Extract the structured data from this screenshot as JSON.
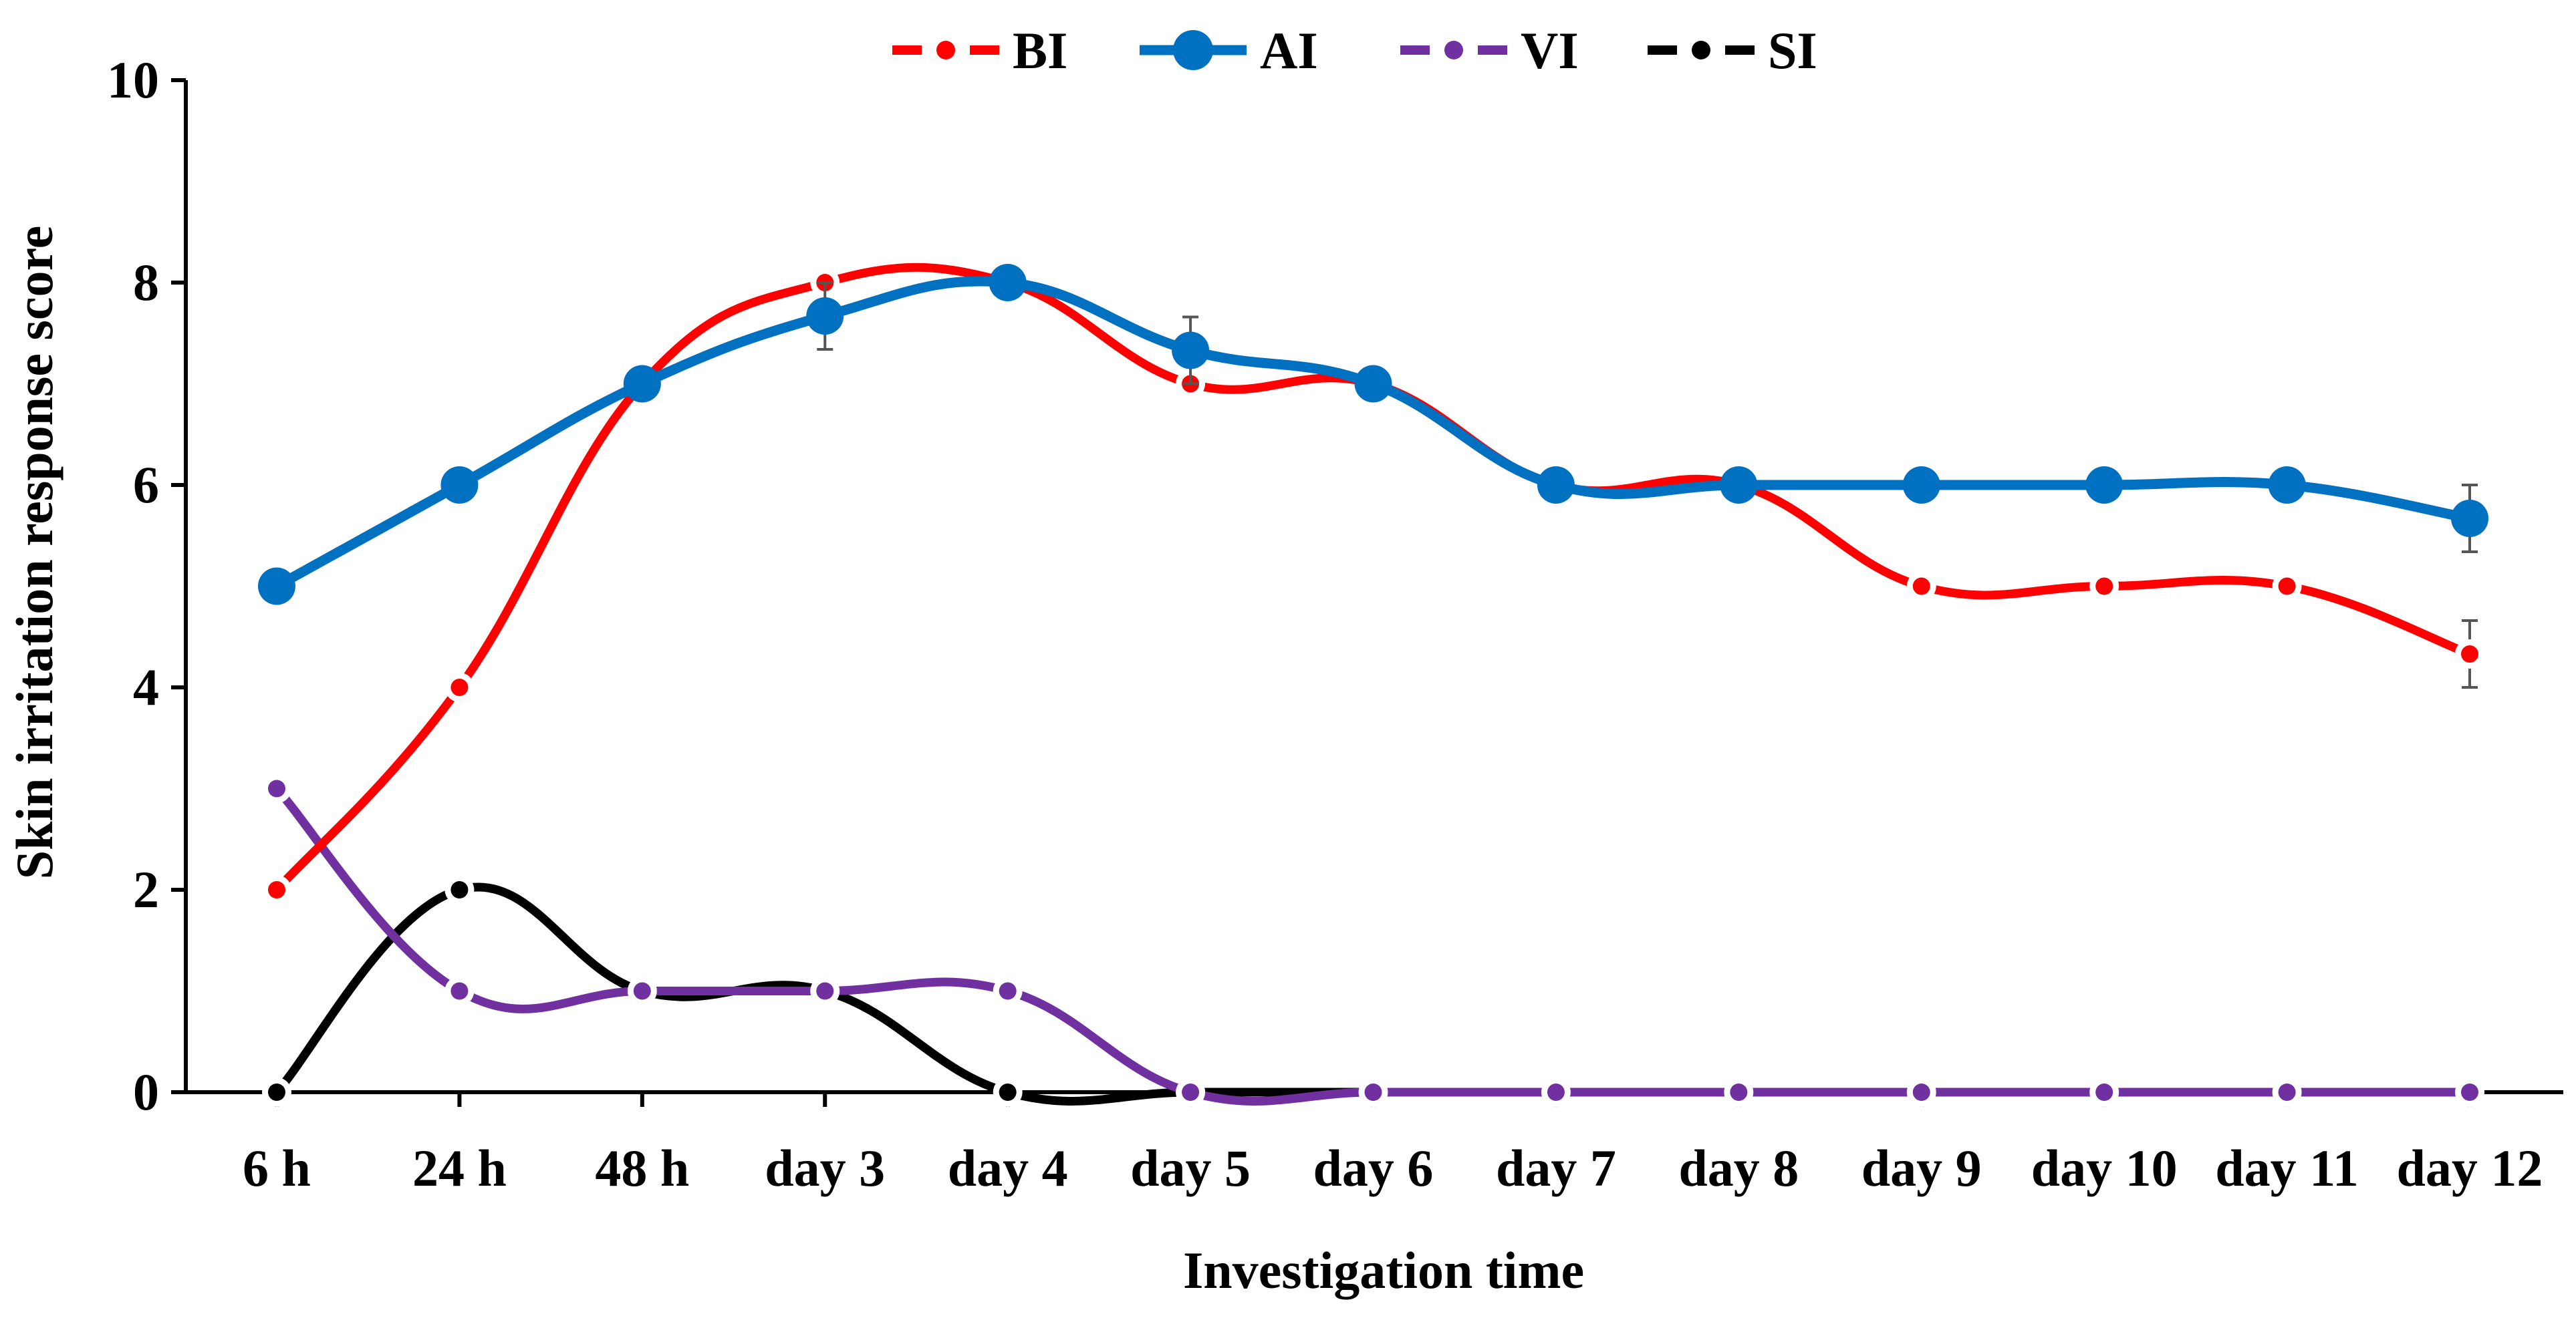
{
  "chart_data": {
    "type": "line",
    "title": "",
    "xlabel": "Investigation time",
    "ylabel": "Skin irritation response score",
    "ylim": [
      0,
      10
    ],
    "yticks": [
      0,
      2,
      4,
      6,
      8,
      10
    ],
    "grid": false,
    "legend_position": "top-center",
    "categories": [
      "6 h",
      "24 h",
      "48 h",
      "day 3",
      "day 4",
      "day 5",
      "day 6",
      "day 7",
      "day 8",
      "day 9",
      "day 10",
      "day 11",
      "day 12"
    ],
    "series": [
      {
        "name": "BI",
        "color": "#ff0000",
        "style": "dashed-small-markers",
        "values": [
          2,
          4,
          7,
          8,
          8,
          7,
          7,
          6,
          6,
          5,
          5,
          5,
          4.33
        ],
        "errors": [
          0,
          0,
          0,
          0,
          0,
          0,
          0,
          0,
          0,
          0,
          0,
          0,
          0.33
        ]
      },
      {
        "name": "AI",
        "color": "#0070c0",
        "style": "solid-large-markers",
        "values": [
          5,
          6,
          7,
          7.67,
          8,
          7.33,
          7,
          6,
          6,
          6,
          6,
          6,
          5.67
        ],
        "errors": [
          0,
          0,
          0,
          0.33,
          0,
          0.33,
          0,
          0,
          0,
          0,
          0,
          0,
          0.33
        ]
      },
      {
        "name": "VI",
        "color": "#7030a0",
        "style": "dashed-small-markers",
        "values": [
          3,
          1,
          1,
          1,
          1,
          0,
          0,
          0,
          0,
          0,
          0,
          0,
          0
        ],
        "errors": [
          0,
          0,
          0,
          0,
          0,
          0,
          0,
          0,
          0,
          0,
          0,
          0,
          0
        ]
      },
      {
        "name": "SI",
        "color": "#000000",
        "style": "dashed-small-markers",
        "values": [
          0,
          2,
          1,
          1,
          0,
          0,
          0,
          0,
          0,
          0,
          0,
          0,
          0
        ],
        "errors": [
          0,
          0,
          0,
          0,
          0,
          0,
          0,
          0,
          0,
          0,
          0,
          0,
          0
        ]
      }
    ]
  }
}
